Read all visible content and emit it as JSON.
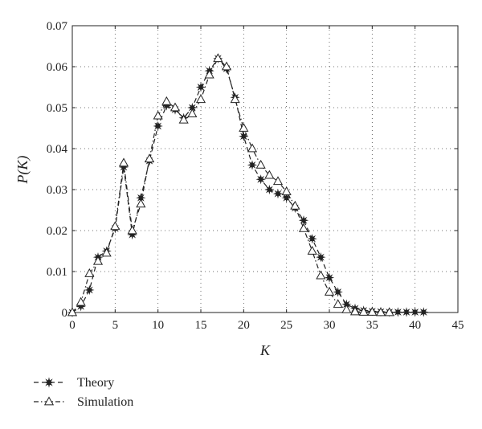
{
  "chart_data": {
    "type": "line",
    "xlabel": "K",
    "ylabel": "P(K)",
    "xlim": [
      0,
      45
    ],
    "ylim": [
      0,
      0.07
    ],
    "x_ticks": [
      "0",
      "5",
      "10",
      "15",
      "20",
      "25",
      "30",
      "35",
      "40",
      "45"
    ],
    "y_ticks": [
      "0",
      "0.01",
      "0.02",
      "0.03",
      "0.04",
      "0.05",
      "0.06",
      "0.07"
    ],
    "grid": true,
    "legend_position": "bottom-left (below plot)",
    "series": [
      {
        "name": "Theory",
        "marker": "star",
        "line_style": "dashed",
        "color": "#222222",
        "x": [
          0,
          1,
          2,
          3,
          4,
          5,
          6,
          7,
          8,
          9,
          10,
          11,
          12,
          13,
          14,
          15,
          16,
          17,
          18,
          19,
          20,
          21,
          22,
          23,
          24,
          25,
          26,
          27,
          28,
          29,
          30,
          31,
          32,
          33,
          34,
          35,
          36,
          37,
          38,
          39,
          40,
          41
        ],
        "y": [
          0,
          0.0015,
          0.0055,
          0.0135,
          0.015,
          0.0205,
          0.0355,
          0.019,
          0.028,
          0.037,
          0.0455,
          0.0505,
          0.0495,
          0.0475,
          0.05,
          0.055,
          0.059,
          0.062,
          0.0595,
          0.0525,
          0.043,
          0.036,
          0.0325,
          0.03,
          0.029,
          0.028,
          0.0255,
          0.0225,
          0.018,
          0.0135,
          0.0085,
          0.005,
          0.002,
          0.001,
          0.0005,
          0.0003,
          0.0002,
          0.0001,
          0.0001,
          0.0001,
          0.0001,
          0.0001
        ]
      },
      {
        "name": "Simulation",
        "marker": "triangle",
        "line_style": "dashdot",
        "color": "#222222",
        "x": [
          0,
          1,
          2,
          3,
          4,
          5,
          6,
          7,
          8,
          9,
          10,
          11,
          12,
          13,
          14,
          15,
          16,
          17,
          18,
          19,
          20,
          21,
          22,
          23,
          24,
          25,
          26,
          27,
          28,
          29,
          30,
          31,
          32,
          33,
          34,
          35,
          36,
          37
        ],
        "y": [
          0,
          0.0025,
          0.0095,
          0.0125,
          0.0145,
          0.021,
          0.0365,
          0.02,
          0.0265,
          0.0375,
          0.048,
          0.0515,
          0.05,
          0.047,
          0.0485,
          0.052,
          0.058,
          0.062,
          0.06,
          0.052,
          0.045,
          0.04,
          0.036,
          0.0335,
          0.032,
          0.0295,
          0.026,
          0.0205,
          0.015,
          0.009,
          0.005,
          0.002,
          0.0007,
          0.0002,
          0.0001,
          0.0001,
          0,
          0
        ]
      }
    ]
  }
}
